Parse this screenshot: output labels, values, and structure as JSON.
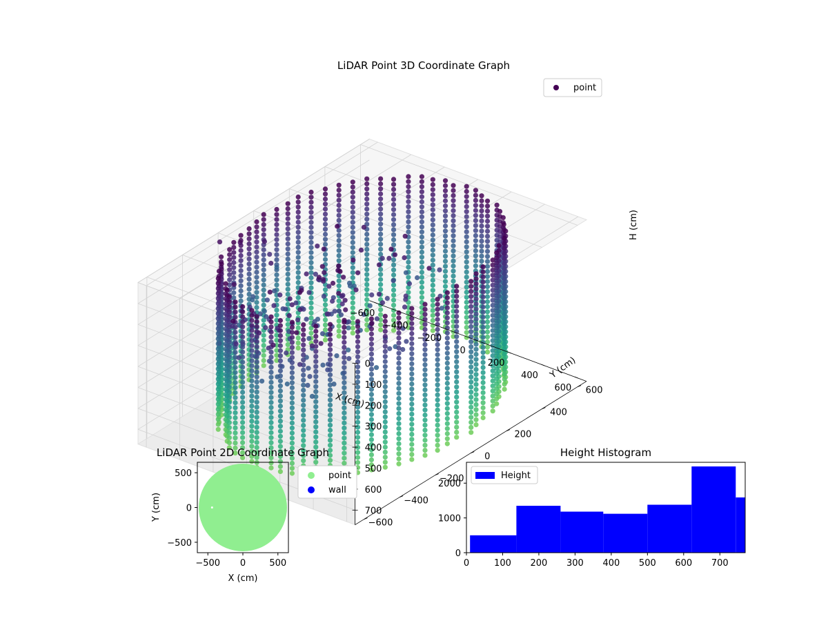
{
  "chart_data": [
    {
      "type": "scatter",
      "dimensions": 3,
      "title": "LiDAR Point 3D Coordinate Graph",
      "xlabel": "X (cm)",
      "ylabel": "Y (cm)",
      "zlabel": "H (cm)",
      "xlim": [
        -650,
        650
      ],
      "ylim": [
        -650,
        650
      ],
      "zlim": [
        0,
        770
      ],
      "z_inverted": true,
      "x_ticks": [
        -600,
        -400,
        -200,
        0,
        200,
        400,
        600
      ],
      "y_ticks": [
        -600,
        -400,
        -200,
        0,
        200,
        400,
        600
      ],
      "z_ticks": [
        0,
        100,
        200,
        300,
        400,
        500,
        600,
        700
      ],
      "colormap": "viridis (by height)",
      "legend": {
        "location": "upper right",
        "entries": [
          "point"
        ]
      },
      "series": [
        {
          "name": "point",
          "color": "#440154",
          "description_of_points": "columns around the wall",
          "wall_radius_cm": 580,
          "column_count": 64,
          "height_range": [
            0,
            720
          ]
        }
      ]
    },
    {
      "type": "scatter",
      "title": "LiDAR Point 2D Coordinate Graph",
      "xlabel": "X (cm)",
      "ylabel": "Y (cm)",
      "xlim": [
        -650,
        650
      ],
      "ylim": [
        -650,
        650
      ],
      "x_ticks": [
        -500,
        0,
        500
      ],
      "y_ticks": [
        -500,
        0,
        500
      ],
      "legend": {
        "location": "outside right",
        "entries": [
          "point",
          "wall"
        ]
      },
      "series": [
        {
          "name": "point",
          "color": "#90ee90",
          "radius_cm": 630
        },
        {
          "name": "wall",
          "color": "#0000ff",
          "values": []
        }
      ]
    },
    {
      "type": "bar",
      "subtype": "histogram",
      "title": "Height Histogram",
      "xlim": [
        0,
        770
      ],
      "ylim": [
        0,
        2600
      ],
      "x_ticks": [
        0,
        100,
        200,
        300,
        400,
        500,
        600,
        700
      ],
      "y_ticks": [
        0,
        1000,
        2000
      ],
      "legend": {
        "location": "upper left",
        "entries": [
          "Height"
        ]
      },
      "series": [
        {
          "name": "Height",
          "color": "#0000ff",
          "bins": [
            {
              "x0": 10,
              "x1": 138,
              "count": 500
            },
            {
              "x0": 138,
              "x1": 260,
              "count": 1350
            },
            {
              "x0": 260,
              "x1": 378,
              "count": 1180
            },
            {
              "x0": 378,
              "x1": 500,
              "count": 1120
            },
            {
              "x0": 500,
              "x1": 622,
              "count": 1380
            },
            {
              "x0": 622,
              "x1": 744,
              "count": 2480
            },
            {
              "x0": 744,
              "x1": 770,
              "count": 1590
            }
          ]
        }
      ]
    }
  ]
}
